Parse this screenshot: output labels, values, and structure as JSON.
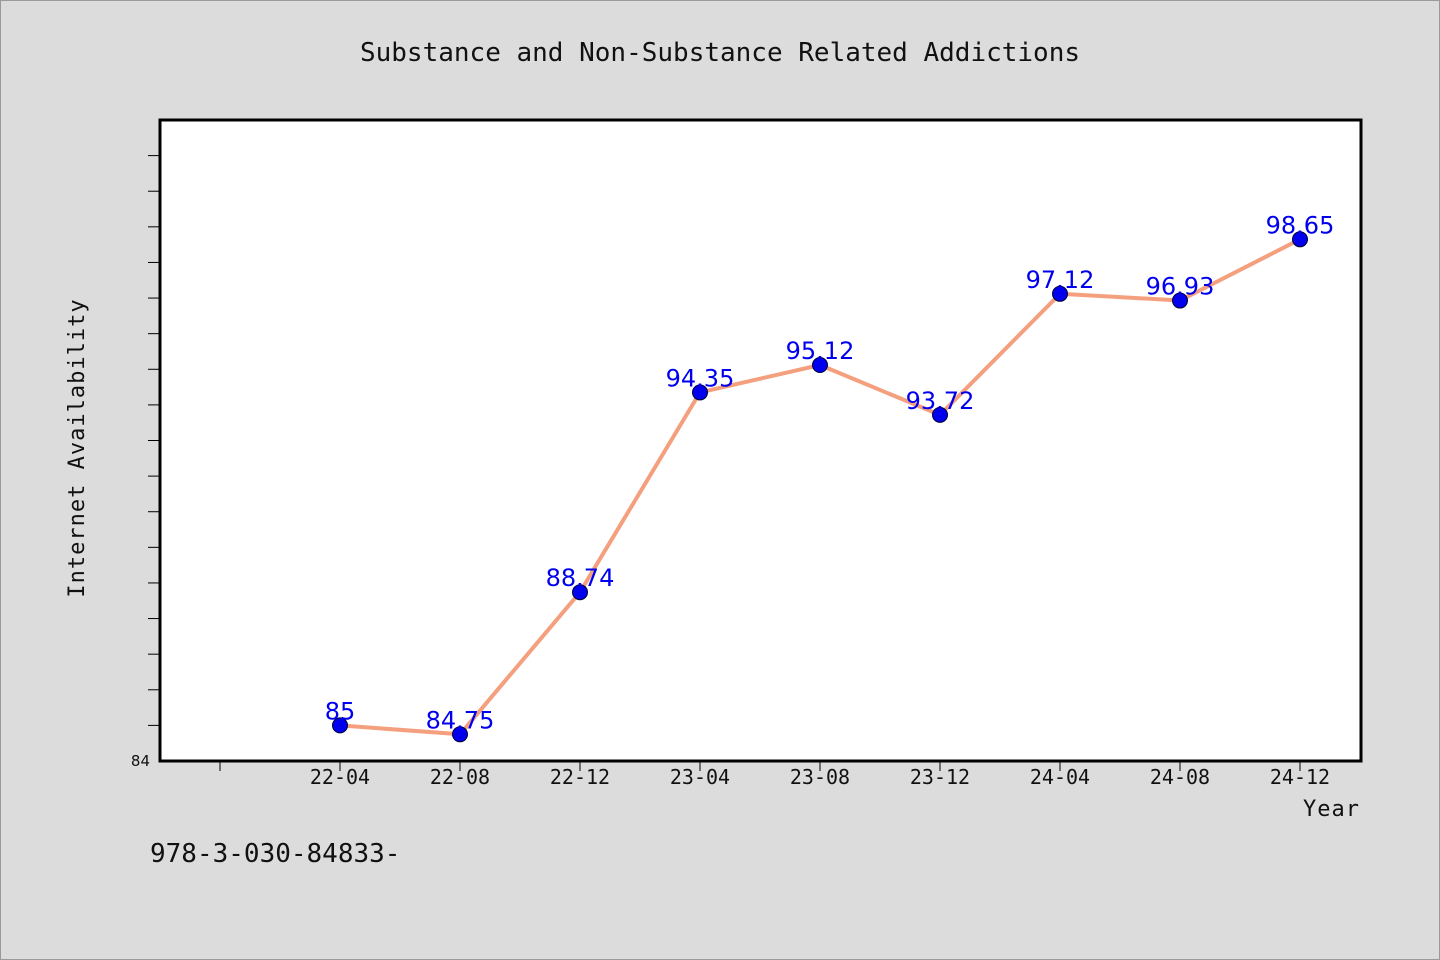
{
  "chart_data": {
    "type": "line",
    "title": "Substance and Non-Substance Related Addictions",
    "xlabel": "Year",
    "ylabel": "Internet Availability",
    "categories": [
      "22-04",
      "22-08",
      "22-12",
      "23-04",
      "23-08",
      "23-12",
      "24-04",
      "24-08",
      "24-12"
    ],
    "series": [
      {
        "values": [
          85,
          84.75,
          88.74,
          94.35,
          95.12,
          93.72,
          97.12,
          96.93,
          98.65
        ],
        "line_color": "#f4a07e",
        "marker_color": "#0000ee"
      }
    ],
    "ylim": [
      84,
      102
    ],
    "y_tick_labels": [
      "84"
    ],
    "data_labels": [
      "85",
      "84.75",
      "88.74",
      "94.35",
      "95.12",
      "93.72",
      "97.12",
      "96.93",
      "98.65"
    ],
    "data_label_color": "#0000ee",
    "grid": false,
    "legend": "none"
  },
  "footer_text": "978-3-030-84833-"
}
